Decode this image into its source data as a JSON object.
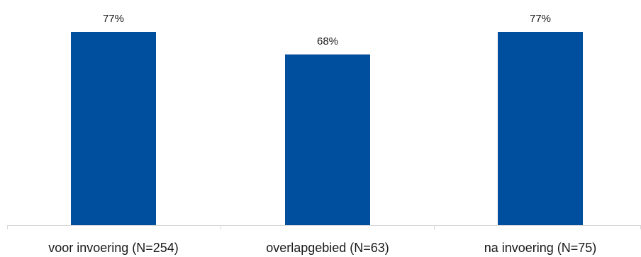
{
  "chart_data": {
    "type": "bar",
    "title": "",
    "xlabel": "",
    "ylabel": "",
    "categories": [
      "voor invoering (N=254)",
      "overlapgebied (N=63)",
      "na invoering (N=75)"
    ],
    "values": [
      77,
      68,
      77
    ],
    "data_labels": [
      "77%",
      "68%",
      "77%"
    ],
    "ylim": [
      0,
      100
    ],
    "grid": false,
    "legend": "none",
    "bar_color": "#004f9f"
  }
}
